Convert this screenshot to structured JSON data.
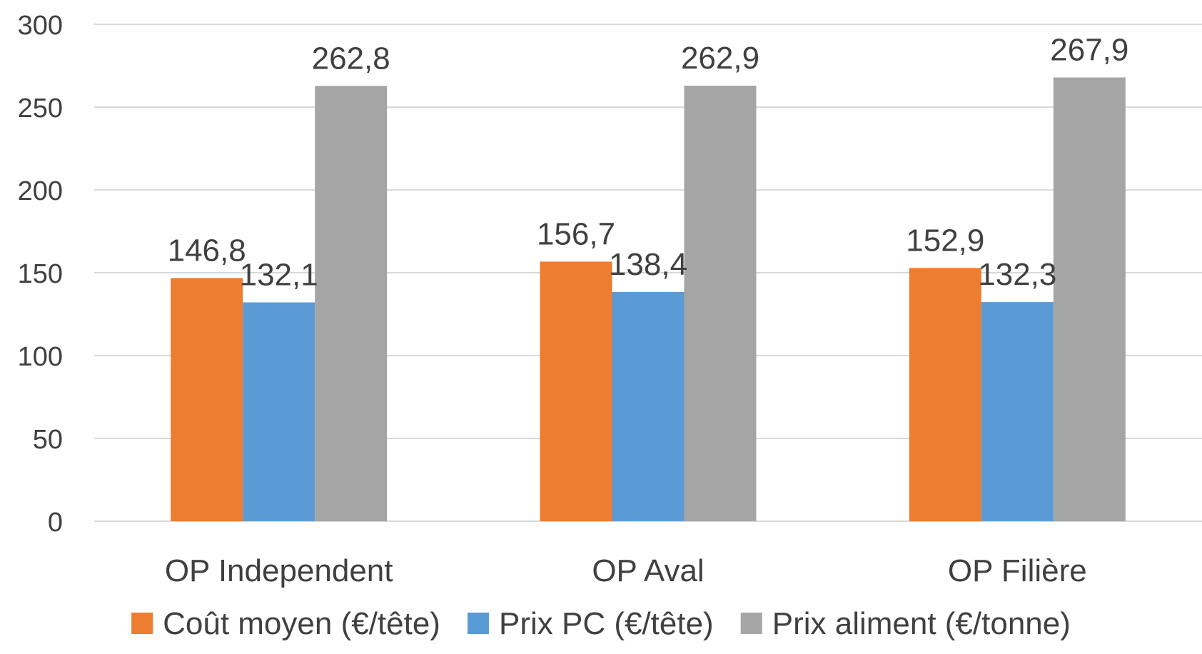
{
  "chart_data": {
    "type": "bar",
    "title": "",
    "xlabel": "",
    "ylabel": "",
    "ylim": [
      0,
      300
    ],
    "yticks": [
      "0",
      "50",
      "100",
      "150",
      "200",
      "250",
      "300"
    ],
    "grid": true,
    "legend_position": "bottom",
    "categories": [
      "OP Independent",
      "OP Aval",
      "OP Filière"
    ],
    "series": [
      {
        "name": "Coût moyen (€/tête)",
        "color": "#ED7D31",
        "values": [
          146.8,
          156.7,
          152.9
        ],
        "labels": [
          "146,8",
          "156,7",
          "152,9"
        ]
      },
      {
        "name": "Prix PC (€/tête)",
        "color": "#5B9BD5",
        "values": [
          132.1,
          138.4,
          132.3
        ],
        "labels": [
          "132,1",
          "138,4",
          "132,3"
        ]
      },
      {
        "name": "Prix aliment (€/tonne)",
        "color": "#A5A5A5",
        "values": [
          262.8,
          262.9,
          267.9
        ],
        "labels": [
          "262,8",
          "262,9",
          "267,9"
        ]
      }
    ]
  }
}
